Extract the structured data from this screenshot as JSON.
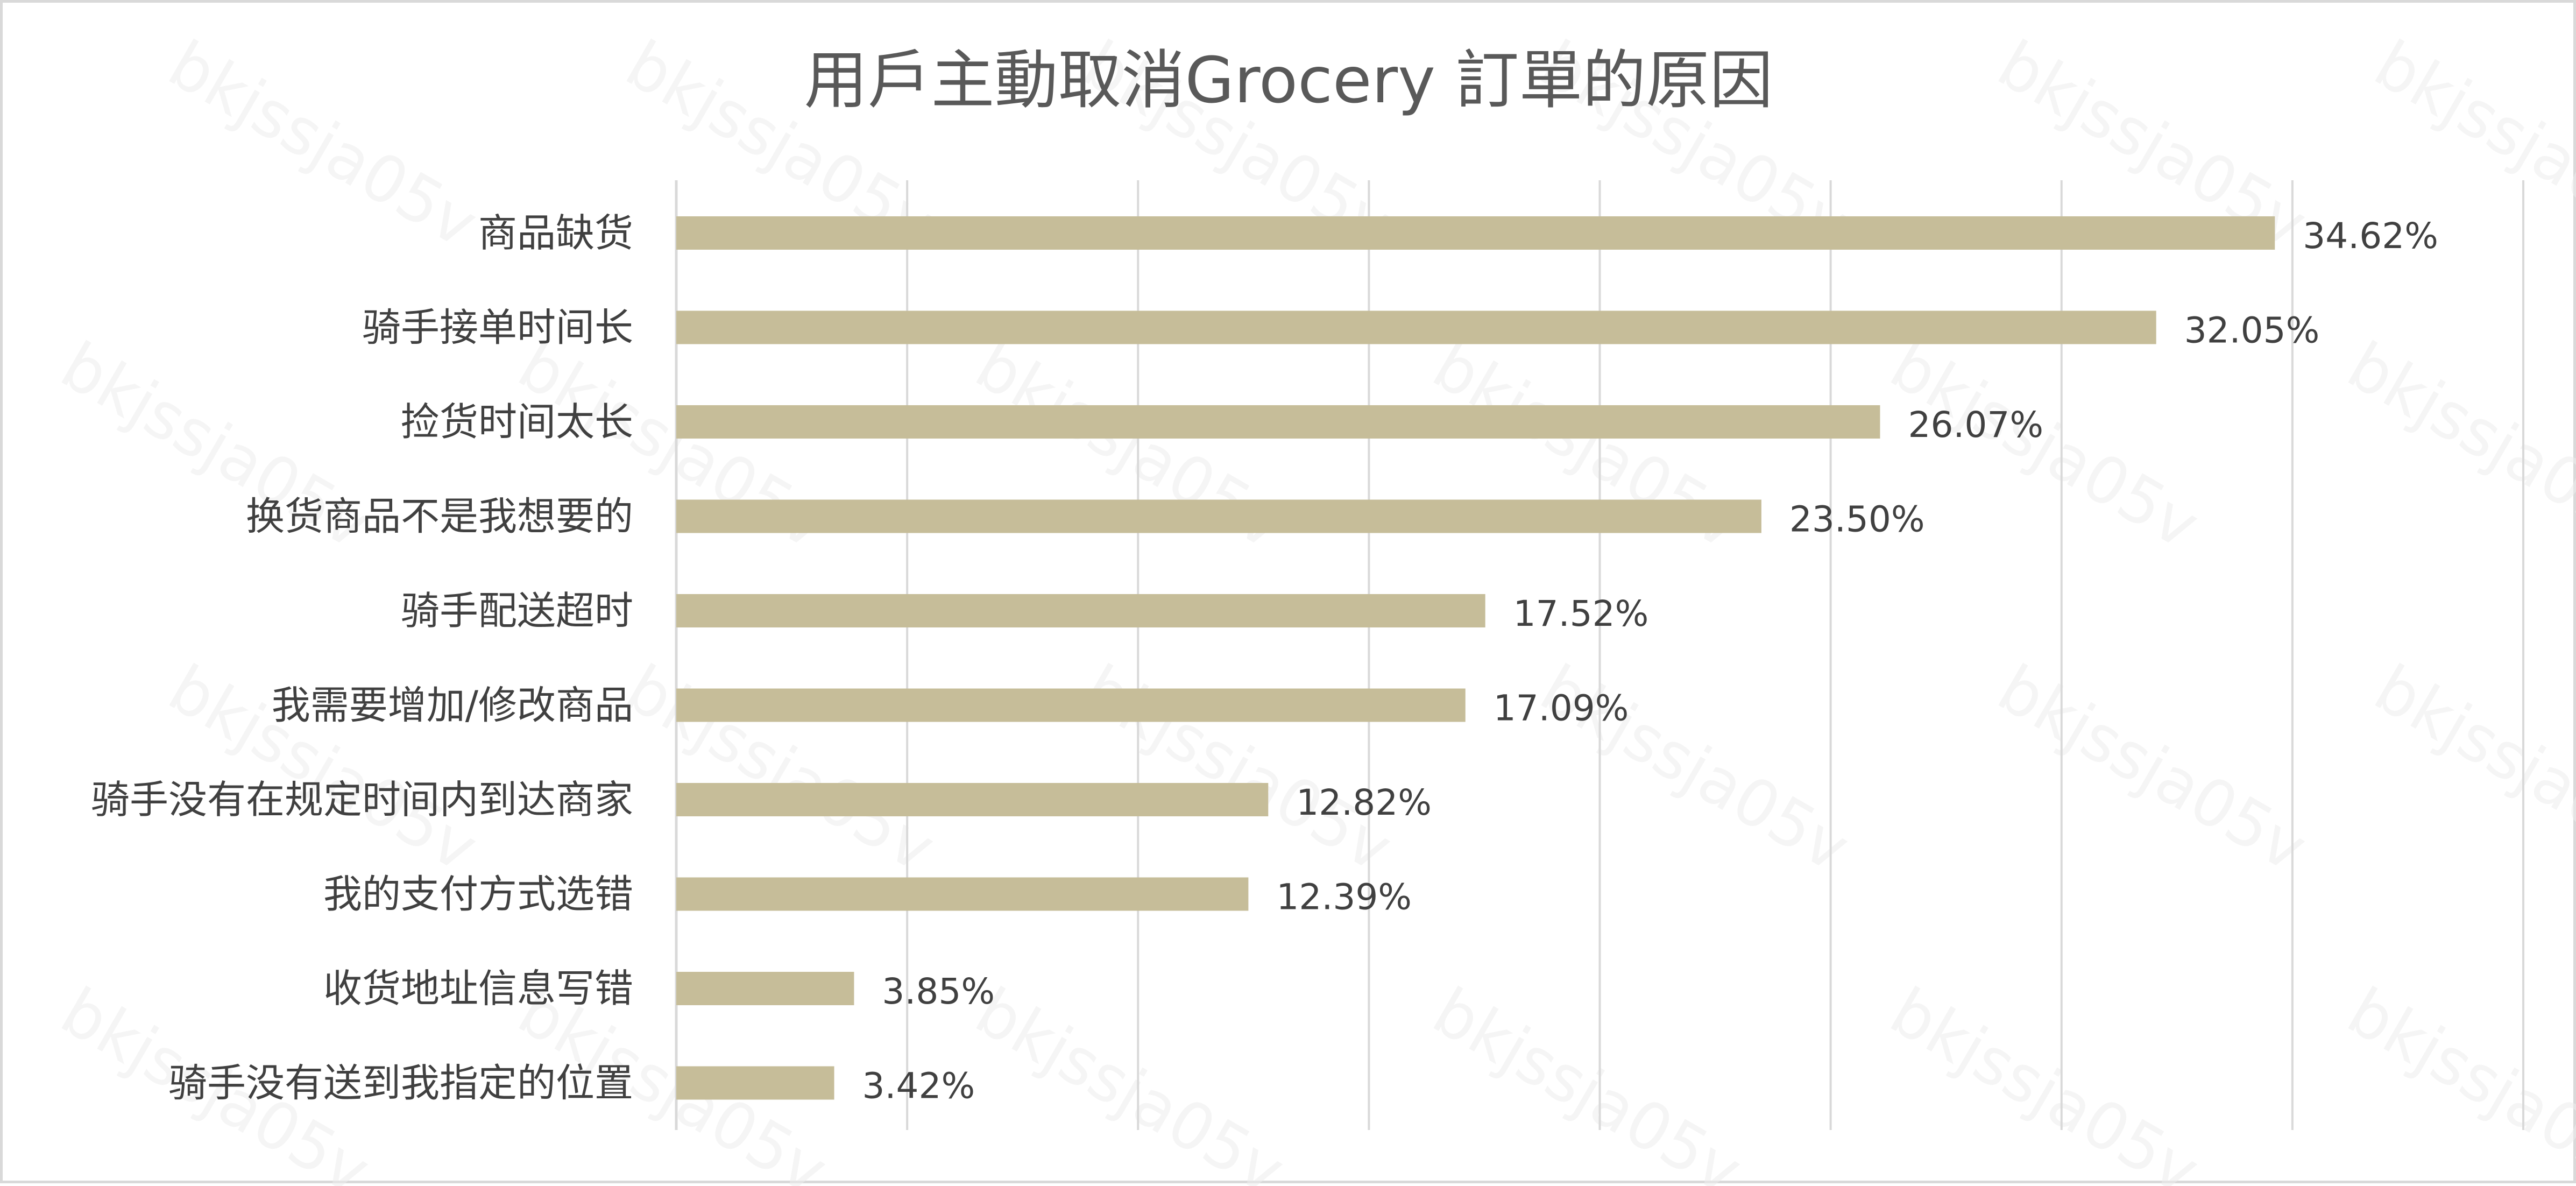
{
  "chart_data": {
    "type": "bar",
    "orientation": "horizontal",
    "title": "用戶主動取消Grocery 訂單的原因",
    "categories": [
      "商品缺货",
      "骑手接单时间长",
      "捡货时间太长",
      "换货商品不是我想要的",
      "骑手配送超时",
      "我需要增加/修改商品",
      "骑手没有在规定时间内到达商家",
      "我的支付方式选错",
      "收货地址信息写错",
      "骑手没有送到我指定的位置"
    ],
    "values": [
      34.62,
      32.05,
      26.07,
      23.5,
      17.52,
      17.09,
      12.82,
      12.39,
      3.85,
      3.42
    ],
    "value_labels": [
      "34.62%",
      "32.05%",
      "26.07%",
      "23.50%",
      "17.52%",
      "17.09%",
      "12.82%",
      "12.39%",
      "3.85%",
      "3.42%"
    ],
    "xlim": [
      0,
      40
    ],
    "grid": true,
    "bar_color": "#c6bd99",
    "gridline_color": "#d9d9d9",
    "watermark": "bkjssja05v"
  }
}
